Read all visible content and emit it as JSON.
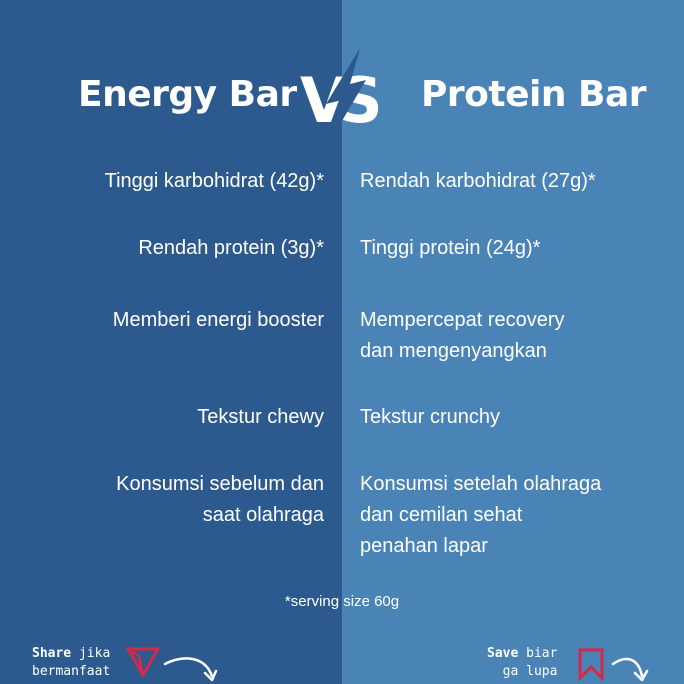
{
  "left": {
    "title": "Energy Bar",
    "rows": [
      [
        "Tinggi karbohidrat (42g)*"
      ],
      [
        "Rendah protein (3g)*"
      ],
      [
        "Memberi energi booster"
      ],
      [
        "Tekstur chewy"
      ],
      [
        "Konsumsi sebelum dan",
        "saat olahraga"
      ]
    ]
  },
  "right": {
    "title": "Protein Bar",
    "rows": [
      [
        "Rendah karbohidrat (27g)*"
      ],
      [
        "Tinggi protein (24g)*"
      ],
      [
        "Mempercepat recovery",
        "dan mengenyangkan"
      ],
      [
        "Tekstur crunchy"
      ],
      [
        "Konsumsi setelah olahraga",
        "dan cemilan sehat",
        "penahan lapar"
      ]
    ]
  },
  "vs_label": "VS",
  "footnote": "*serving size 60g",
  "share": {
    "bold": "Share",
    "line1_rest": " jika",
    "line2": "bermanfaat"
  },
  "save": {
    "bold": "Save",
    "line1_rest": " biar",
    "line2": "ga lupa"
  },
  "colors": {
    "left_bg": "#2c5a8f",
    "right_bg": "#4a84b7",
    "accent": "#d6284b",
    "text": "#ffffff"
  },
  "icons": [
    "vs-logo-icon",
    "triangle-share-icon",
    "bookmark-icon",
    "curved-arrow-icon"
  ]
}
